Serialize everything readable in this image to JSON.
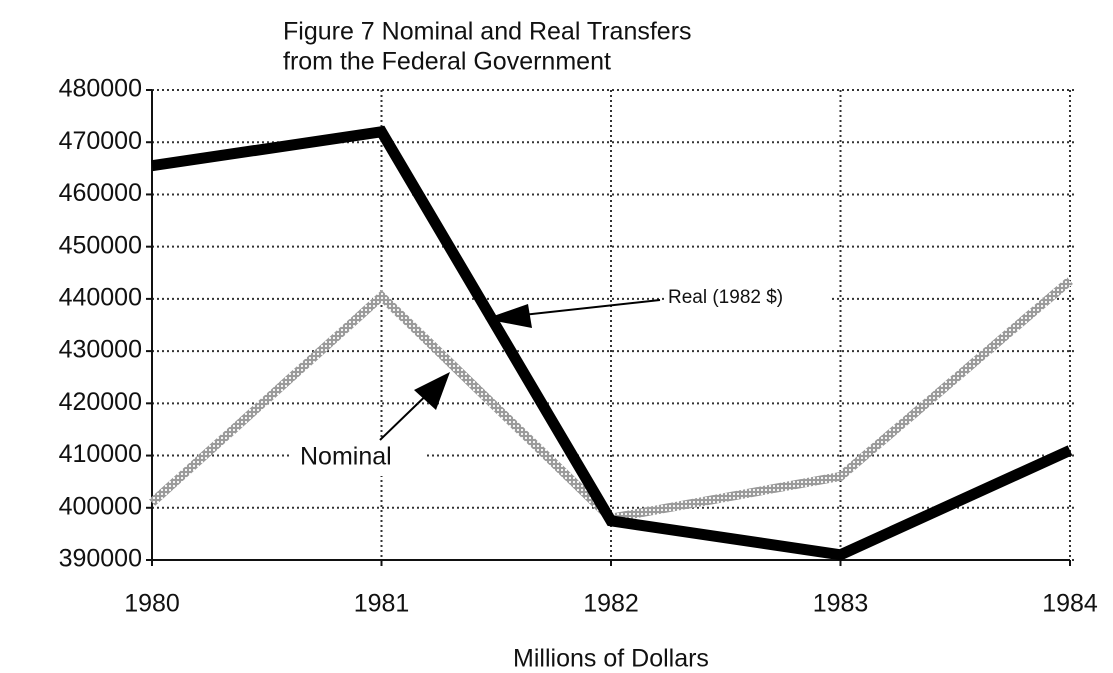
{
  "chart_data": {
    "type": "line",
    "title": [
      "Figure 7    Nominal and Real Transfers",
      "from the Federal Government"
    ],
    "x_label": "Millions of Dollars",
    "x": [
      1980,
      1981,
      1982,
      1983,
      1984
    ],
    "xlim": [
      1980,
      1984
    ],
    "xticks": [
      1980,
      1981,
      1982,
      1983,
      1984
    ],
    "ylim": [
      390000,
      480000
    ],
    "yticks": [
      390000,
      400000,
      410000,
      420000,
      430000,
      440000,
      450000,
      460000,
      470000,
      480000
    ],
    "grid": true,
    "series": [
      {
        "name": "Real (1982 $)",
        "color": "#000000",
        "values": [
          465500,
          472000,
          397500,
          391000,
          411000
        ]
      },
      {
        "name": "Nominal",
        "color": "#8a8a8a",
        "values": [
          401000,
          440500,
          398000,
          406000,
          443500
        ]
      }
    ]
  }
}
